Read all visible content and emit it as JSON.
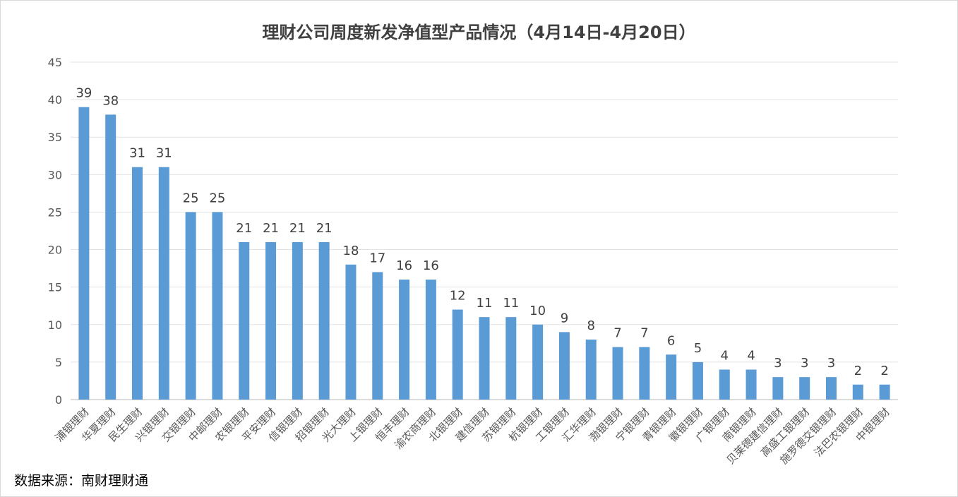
{
  "chart_data": {
    "type": "bar",
    "title": "理财公司周度新发净值型产品情况（4月14日-4月20日）",
    "xlabel": "",
    "ylabel": "",
    "ylim": [
      0,
      45
    ],
    "yticks": [
      0,
      5,
      10,
      15,
      20,
      25,
      30,
      35,
      40,
      45
    ],
    "grid": true,
    "bar_color": "#5b9bd5",
    "categories": [
      "浦银理财",
      "华夏理财",
      "民生理财",
      "兴银理财",
      "交银理财",
      "中邮理财",
      "农银理财",
      "平安理财",
      "信银理财",
      "招银理财",
      "光大理财",
      "上银理财",
      "恒丰理财",
      "渝农商理财",
      "北银理财",
      "建信理财",
      "苏银理财",
      "杭银理财",
      "工银理财",
      "汇华理财",
      "渤银理财",
      "宁银理财",
      "青银理财",
      "徽银理财",
      "广银理财",
      "南银理财",
      "贝莱德建信理财",
      "高盛工银理财",
      "施罗德交银理财",
      "法巴农银理财",
      "中银理财"
    ],
    "values": [
      39,
      38,
      31,
      31,
      25,
      25,
      21,
      21,
      21,
      21,
      18,
      17,
      16,
      16,
      12,
      11,
      11,
      10,
      9,
      8,
      7,
      7,
      6,
      5,
      4,
      4,
      3,
      3,
      3,
      2,
      2
    ]
  },
  "source": "数据来源：南财理财通"
}
